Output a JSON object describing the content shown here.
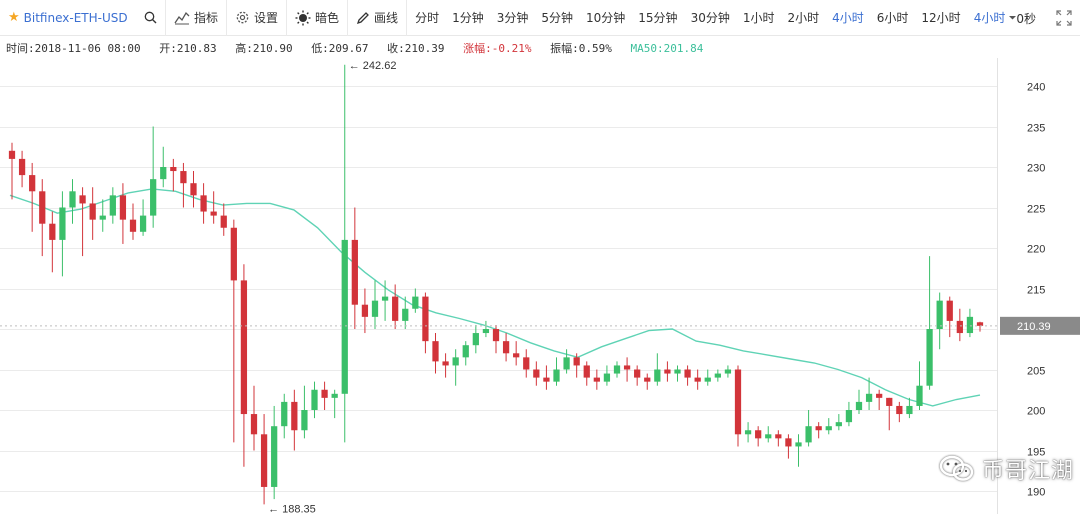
{
  "toolbar": {
    "symbol": "Bitfinex-ETH-USD",
    "buttons": {
      "indicators": "指标",
      "settings": "设置",
      "dark": "暗色",
      "draw": "画线"
    },
    "intervals": [
      "分时",
      "1分钟",
      "3分钟",
      "5分钟",
      "10分钟",
      "15分钟",
      "30分钟",
      "1小时",
      "2小时",
      "4小时",
      "6小时",
      "12小时"
    ],
    "selected_dropdown": "4小时",
    "timer": "0秒"
  },
  "info": {
    "time": "时间:2018-11-06 08:00",
    "open": "开:210.83",
    "high": "高:210.90",
    "low": "低:209.67",
    "close": "收:210.39",
    "change": "涨幅:-0.21%",
    "amplitude": "振幅:0.59%",
    "ma": "MA50:201.84"
  },
  "colors": {
    "up": "#3bbf6a",
    "down": "#d2343a",
    "ma": "#5fd3b5",
    "grid": "#ebebeb",
    "active": "#3b6fd1"
  },
  "watermark": "币哥江湖",
  "chart_data": {
    "type": "candlestick",
    "symbol": "Bitfinex-ETH-USD",
    "interval": "4小时",
    "ylim": [
      187,
      244
    ],
    "y_ticks": [
      190,
      195,
      200,
      205,
      210,
      215,
      220,
      225,
      230,
      235,
      240
    ],
    "last_price": "210.39",
    "annotations": [
      {
        "text": "← 242.62",
        "value": 242.62
      },
      {
        "text": "← 188.35",
        "value": 188.35
      }
    ],
    "ma50": [
      226.5,
      225.5,
      224.3,
      224.8,
      225.8,
      226.8,
      227.3,
      227.0,
      226.0,
      225.3,
      225.5,
      225.5,
      224.7,
      222.5,
      219.5,
      217.0,
      214.8,
      213.0,
      212.0,
      211.3,
      210.5,
      209.5,
      208.3,
      207.3,
      206.5,
      207.8,
      208.8,
      209.8,
      210.0,
      208.5,
      208.0,
      207.3,
      206.8,
      206.3,
      205.8,
      205.0,
      204.0,
      202.5,
      201.3,
      200.5,
      201.3,
      201.84
    ],
    "candles": [
      [
        232.0,
        231.0,
        233.0,
        226.0
      ],
      [
        231.0,
        229.0,
        232.0,
        227.5
      ],
      [
        229.0,
        227.0,
        230.5,
        222.0
      ],
      [
        227.0,
        223.0,
        228.5,
        219.0
      ],
      [
        223.0,
        221.0,
        224.5,
        217.0
      ],
      [
        221.0,
        225.0,
        227.0,
        216.5
      ],
      [
        225.0,
        227.0,
        228.5,
        223.0
      ],
      [
        226.5,
        225.5,
        227.5,
        219.0
      ],
      [
        225.5,
        223.5,
        227.5,
        221.0
      ],
      [
        223.5,
        224.0,
        226.0,
        222.0
      ],
      [
        224.0,
        226.5,
        227.5,
        223.0
      ],
      [
        226.5,
        223.5,
        228.0,
        220.5
      ],
      [
        223.5,
        222.0,
        225.5,
        221.0
      ],
      [
        222.0,
        224.0,
        226.0,
        221.5
      ],
      [
        224.0,
        228.5,
        235.0,
        222.5
      ],
      [
        228.5,
        230.0,
        232.5,
        227.5
      ],
      [
        230.0,
        229.5,
        231.0,
        227.0
      ],
      [
        229.5,
        228.0,
        230.5,
        225.0
      ],
      [
        228.0,
        226.5,
        229.5,
        225.0
      ],
      [
        226.5,
        224.5,
        228.0,
        223.0
      ],
      [
        224.5,
        224.0,
        227.0,
        223.0
      ],
      [
        224.0,
        222.5,
        225.5,
        221.5
      ],
      [
        222.5,
        216.0,
        223.5,
        196.0
      ],
      [
        216.0,
        199.5,
        218.0,
        193.0
      ],
      [
        199.5,
        197.0,
        203.0,
        195.0
      ],
      [
        197.0,
        190.5,
        199.5,
        188.35
      ],
      [
        190.5,
        198.0,
        200.5,
        189.0
      ],
      [
        198.0,
        201.0,
        202.0,
        196.5
      ],
      [
        201.0,
        197.5,
        202.5,
        195.0
      ],
      [
        197.5,
        200.0,
        203.0,
        196.5
      ],
      [
        200.0,
        202.5,
        203.5,
        199.0
      ],
      [
        202.5,
        201.5,
        203.5,
        200.0
      ],
      [
        201.5,
        202.0,
        202.5,
        199.0
      ],
      [
        202.0,
        221.0,
        242.62,
        196.0
      ],
      [
        221.0,
        213.0,
        225.0,
        210.0
      ],
      [
        213.0,
        211.5,
        215.0,
        209.5
      ],
      [
        211.5,
        213.5,
        216.0,
        210.0
      ],
      [
        213.5,
        214.0,
        216.0,
        211.0
      ],
      [
        214.0,
        211.0,
        215.5,
        210.0
      ],
      [
        211.0,
        212.5,
        214.0,
        210.0
      ],
      [
        212.5,
        214.0,
        215.0,
        212.0
      ],
      [
        214.0,
        208.5,
        214.5,
        207.0
      ],
      [
        208.5,
        206.0,
        209.5,
        204.5
      ],
      [
        206.0,
        205.5,
        207.0,
        204.0
      ],
      [
        205.5,
        206.5,
        207.5,
        203.0
      ],
      [
        206.5,
        208.0,
        208.5,
        205.5
      ],
      [
        208.0,
        209.5,
        210.5,
        207.0
      ],
      [
        209.5,
        210.0,
        211.0,
        209.0
      ],
      [
        210.0,
        208.5,
        210.5,
        207.0
      ],
      [
        208.5,
        207.0,
        209.5,
        206.0
      ],
      [
        207.0,
        206.5,
        208.5,
        205.5
      ],
      [
        206.5,
        205.0,
        207.5,
        204.0
      ],
      [
        205.0,
        204.0,
        206.0,
        203.0
      ],
      [
        204.0,
        203.5,
        205.5,
        202.5
      ],
      [
        203.5,
        205.0,
        206.5,
        203.0
      ],
      [
        205.0,
        206.5,
        207.5,
        204.5
      ],
      [
        206.5,
        205.5,
        207.0,
        204.0
      ],
      [
        205.5,
        204.0,
        206.0,
        203.0
      ],
      [
        204.0,
        203.5,
        205.0,
        202.5
      ],
      [
        203.5,
        204.5,
        205.5,
        203.0
      ],
      [
        204.5,
        205.5,
        206.0,
        204.0
      ],
      [
        205.5,
        205.0,
        206.5,
        203.5
      ],
      [
        205.0,
        204.0,
        205.5,
        203.0
      ],
      [
        204.0,
        203.5,
        204.5,
        202.5
      ],
      [
        203.5,
        205.0,
        207.0,
        203.0
      ],
      [
        205.0,
        204.5,
        206.0,
        203.5
      ],
      [
        204.5,
        205.0,
        205.5,
        203.5
      ],
      [
        205.0,
        204.0,
        205.5,
        203.0
      ],
      [
        204.0,
        203.5,
        205.0,
        202.5
      ],
      [
        203.5,
        204.0,
        205.0,
        203.0
      ],
      [
        204.0,
        204.5,
        205.0,
        203.5
      ],
      [
        204.5,
        205.0,
        205.5,
        204.0
      ],
      [
        205.0,
        197.0,
        205.5,
        195.5
      ],
      [
        197.0,
        197.5,
        198.5,
        196.0
      ],
      [
        197.5,
        196.5,
        198.0,
        195.5
      ],
      [
        196.5,
        197.0,
        198.0,
        196.0
      ],
      [
        197.0,
        196.5,
        197.5,
        195.5
      ],
      [
        196.5,
        195.5,
        197.0,
        194.0
      ],
      [
        195.5,
        196.0,
        197.0,
        193.0
      ],
      [
        196.0,
        198.0,
        200.0,
        195.5
      ],
      [
        198.0,
        197.5,
        198.5,
        196.5
      ],
      [
        197.5,
        198.0,
        199.0,
        197.0
      ],
      [
        198.0,
        198.5,
        199.5,
        197.5
      ],
      [
        198.5,
        200.0,
        201.0,
        198.0
      ],
      [
        200.0,
        201.0,
        202.5,
        199.5
      ],
      [
        201.0,
        202.0,
        204.0,
        200.0
      ],
      [
        202.0,
        201.5,
        202.5,
        200.0
      ],
      [
        201.5,
        200.5,
        201.5,
        197.5
      ],
      [
        200.5,
        199.5,
        201.0,
        198.5
      ],
      [
        199.5,
        200.5,
        201.5,
        199.0
      ],
      [
        200.5,
        203.0,
        206.0,
        200.0
      ],
      [
        203.0,
        210.0,
        219.0,
        202.5
      ],
      [
        210.0,
        213.5,
        214.5,
        207.5
      ],
      [
        213.5,
        211.0,
        214.0,
        209.0
      ],
      [
        211.0,
        209.5,
        212.5,
        208.5
      ],
      [
        209.5,
        211.5,
        212.5,
        209.0
      ],
      [
        210.83,
        210.39,
        210.9,
        209.67
      ]
    ]
  }
}
